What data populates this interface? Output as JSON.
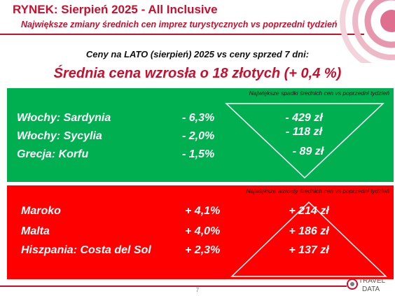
{
  "header": {
    "title": "RYNEK: Sierpień 2025 - All Inclusive",
    "subtitle": "Największe zmiany średnich cen imprez turystycznych vs poprzedni tydzień"
  },
  "intro": "Ceny na LATO (sierpień) 2025 vs ceny sprzed 7 dni:",
  "headline": "Średnia cena wzrosła o 18 złotych (+ 0,4 %)",
  "decreases": {
    "note": "Największe spadki średnich cen vs poprzedni tydzień",
    "rows": [
      {
        "name": "Włochy: Sardynia",
        "pct": "- 6,3%",
        "amount": "- 429 zł"
      },
      {
        "name": "Włochy: Sycylia",
        "pct": "- 2,0%",
        "amount": "- 118 zł"
      },
      {
        "name": "Grecja: Korfu",
        "pct": "- 1,5%",
        "amount": "- 89 zł"
      }
    ],
    "color": "#00b050"
  },
  "increases": {
    "note": "Największe wzrosty średnich cen vs poprzedni tydzień",
    "rows": [
      {
        "name": "Maroko",
        "pct": "+ 4,1%",
        "amount": "+ 214 zł"
      },
      {
        "name": "Malta",
        "pct": "+ 4,0%",
        "amount": "+ 186 zł"
      },
      {
        "name": "Hiszpania: Costa del Sol",
        "pct": "+ 2,3%",
        "amount": "+ 137 zł"
      }
    ],
    "color": "#ff0000"
  },
  "footer": {
    "page_number": "7",
    "logo_line1": "TRAVEL",
    "logo_line2": "DATA"
  },
  "accent_color": "#c8102e"
}
